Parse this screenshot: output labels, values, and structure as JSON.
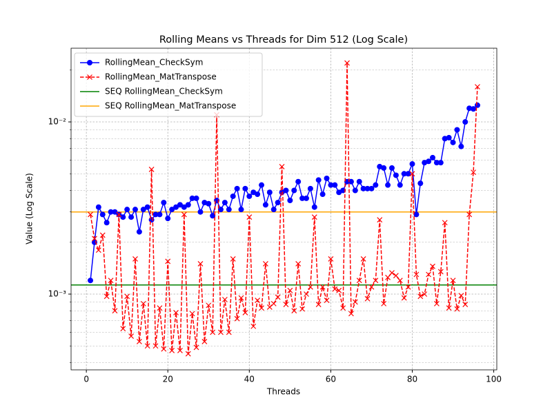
{
  "chart_data": {
    "type": "line",
    "title": "Rolling Means vs Threads for Dim 512 (Log Scale)",
    "xlabel": "Threads",
    "ylabel": "Value (Log Scale)",
    "x": [
      1,
      2,
      3,
      4,
      5,
      6,
      7,
      8,
      9,
      10,
      11,
      12,
      13,
      14,
      15,
      16,
      17,
      18,
      19,
      20,
      21,
      22,
      23,
      24,
      25,
      26,
      27,
      28,
      29,
      30,
      31,
      32,
      33,
      34,
      35,
      36,
      37,
      38,
      39,
      40,
      41,
      42,
      43,
      44,
      45,
      46,
      47,
      48,
      49,
      50,
      51,
      52,
      53,
      54,
      55,
      56,
      57,
      58,
      59,
      60,
      61,
      62,
      63,
      64,
      65,
      66,
      67,
      68,
      69,
      70,
      71,
      72,
      73,
      74,
      75,
      76,
      77,
      78,
      79,
      80,
      81,
      82,
      83,
      84,
      85,
      86,
      87,
      88,
      89,
      90,
      91,
      92,
      93,
      94,
      95,
      96
    ],
    "series": [
      {
        "name": "RollingMean_CheckSym",
        "color": "#0000ff",
        "marker": "o",
        "linestyle": "solid",
        "values": [
          0.0012,
          0.002,
          0.0032,
          0.0029,
          0.0026,
          0.003,
          0.003,
          0.0029,
          0.0028,
          0.0031,
          0.0028,
          0.0031,
          0.0023,
          0.0031,
          0.0032,
          0.0027,
          0.0029,
          0.0029,
          0.0034,
          0.00275,
          0.0031,
          0.0032,
          0.0033,
          0.0032,
          0.0033,
          0.0036,
          0.0036,
          0.003,
          0.0034,
          0.00335,
          0.00285,
          0.0035,
          0.0031,
          0.0034,
          0.0031,
          0.0037,
          0.0041,
          0.0031,
          0.0041,
          0.0037,
          0.0039,
          0.0038,
          0.0043,
          0.0033,
          0.0039,
          0.0031,
          0.0034,
          0.0039,
          0.004,
          0.0035,
          0.004,
          0.0045,
          0.0036,
          0.0036,
          0.0041,
          0.0032,
          0.0046,
          0.0038,
          0.0047,
          0.0043,
          0.0043,
          0.0039,
          0.004,
          0.0045,
          0.0045,
          0.004,
          0.0045,
          0.0041,
          0.0041,
          0.0041,
          0.0043,
          0.0055,
          0.0054,
          0.0043,
          0.0054,
          0.0049,
          0.0043,
          0.005,
          0.005,
          0.0057,
          0.0029,
          0.0044,
          0.0058,
          0.0059,
          0.0062,
          0.0058,
          0.0058,
          0.008,
          0.0081,
          0.0076,
          0.009,
          0.0072,
          0.01,
          0.012,
          0.0119,
          0.0125
        ]
      },
      {
        "name": "RollingMean_MatTranspose",
        "color": "#ff0000",
        "marker": "x",
        "linestyle": "dashed",
        "values": [
          0.0029,
          0.0021,
          0.0018,
          0.0022,
          0.00097,
          0.0012,
          0.0008,
          0.0029,
          0.00063,
          0.00097,
          0.00057,
          0.0016,
          0.00053,
          0.00088,
          0.0005,
          0.0053,
          0.0005,
          0.00083,
          0.00048,
          0.00155,
          0.00047,
          0.00078,
          0.00047,
          0.0029,
          0.00045,
          0.00077,
          0.00049,
          0.0015,
          0.00053,
          0.00086,
          0.0006,
          0.011,
          0.0006,
          0.00093,
          0.0006,
          0.0016,
          0.00072,
          0.00095,
          0.00078,
          0.0028,
          0.00065,
          0.00092,
          0.00083,
          0.0015,
          0.00084,
          0.00088,
          0.00096,
          0.0055,
          0.00087,
          0.00105,
          0.0008,
          0.0015,
          0.00082,
          0.001,
          0.0011,
          0.0028,
          0.00087,
          0.0011,
          0.00092,
          0.0016,
          0.00107,
          0.00105,
          0.00083,
          0.022,
          0.00077,
          0.0009,
          0.0012,
          0.0016,
          0.00094,
          0.0011,
          0.0012,
          0.0027,
          0.00088,
          0.00125,
          0.00133,
          0.00128,
          0.0012,
          0.00095,
          0.0011,
          0.005,
          0.0013,
          0.00097,
          0.001,
          0.0013,
          0.00145,
          0.00088,
          0.00135,
          0.0026,
          0.00083,
          0.0012,
          0.00082,
          0.00098,
          0.00087,
          0.0029,
          0.0051,
          0.016
        ]
      }
    ],
    "reference_lines": [
      {
        "name": "SEQ RollingMean_CheckSym",
        "color": "#008000",
        "value": 0.00113
      },
      {
        "name": "SEQ RollingMean_MatTranspose",
        "color": "#ffa500",
        "value": 0.003
      }
    ],
    "xlim": [
      -3.75,
      100.75
    ],
    "xticks": [
      0,
      20,
      40,
      60,
      80,
      100
    ],
    "ylim": [
      0.000363,
      0.0268
    ],
    "log_y": true,
    "yticks": [
      {
        "value": 0.001,
        "label": "10⁻³"
      },
      {
        "value": 0.01,
        "label": "10⁻²"
      }
    ],
    "grid": true,
    "legend": "upper left"
  }
}
